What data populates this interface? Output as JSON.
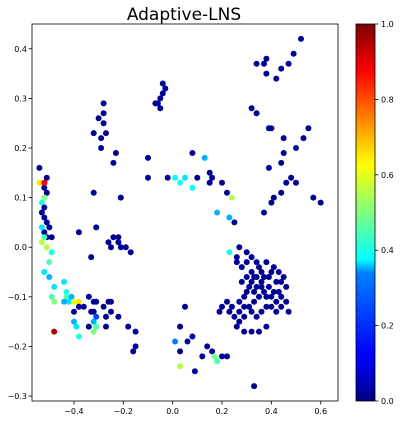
{
  "chart_data": {
    "type": "scatter",
    "title": "Adaptive-LNS",
    "xlabel": "",
    "ylabel": "",
    "xlim": [
      -0.57,
      0.67
    ],
    "ylim": [
      -0.31,
      0.45
    ],
    "x_ticks": [
      -0.4,
      -0.2,
      0.0,
      0.2,
      0.4,
      0.6
    ],
    "x_tick_labels": [
      "−0.4",
      "−0.2",
      "0.0",
      "0.2",
      "0.4",
      "0.6"
    ],
    "y_ticks": [
      -0.3,
      -0.2,
      -0.1,
      0.0,
      0.1,
      0.2,
      0.3,
      0.4
    ],
    "y_tick_labels": [
      "−0.3",
      "−0.2",
      "−0.1",
      "0.0",
      "0.1",
      "0.2",
      "0.3",
      "0.4"
    ],
    "grid": false,
    "colormap": "jet",
    "colorbar": {
      "range": [
        0.0,
        1.0
      ],
      "ticks": [
        0.0,
        0.2,
        0.4,
        0.6,
        0.8,
        1.0
      ],
      "tick_labels": [
        "0.0",
        "0.2",
        "0.4",
        "0.6",
        "0.8",
        "1.0"
      ]
    },
    "points": [
      [
        0.52,
        0.42,
        0.02
      ],
      [
        0.49,
        0.39,
        0.02
      ],
      [
        0.47,
        0.37,
        0.02
      ],
      [
        0.44,
        0.36,
        0.02
      ],
      [
        0.38,
        0.38,
        0.02
      ],
      [
        0.37,
        0.37,
        0.02
      ],
      [
        0.34,
        0.37,
        0.02
      ],
      [
        0.38,
        0.35,
        0.02
      ],
      [
        0.42,
        0.34,
        0.02
      ],
      [
        -0.04,
        0.33,
        0.02
      ],
      [
        -0.03,
        0.32,
        0.02
      ],
      [
        -0.04,
        0.31,
        0.02
      ],
      [
        -0.05,
        0.3,
        0.02
      ],
      [
        -0.06,
        0.29,
        0.02
      ],
      [
        -0.05,
        0.28,
        0.02
      ],
      [
        -0.07,
        0.29,
        0.02
      ],
      [
        -0.28,
        0.29,
        0.02
      ],
      [
        -0.28,
        0.27,
        0.02
      ],
      [
        -0.3,
        0.26,
        0.02
      ],
      [
        -0.28,
        0.25,
        0.02
      ],
      [
        -0.27,
        0.23,
        0.02
      ],
      [
        -0.29,
        0.22,
        0.02
      ],
      [
        -0.32,
        0.23,
        0.02
      ],
      [
        -0.29,
        0.2,
        0.02
      ],
      [
        -0.23,
        0.19,
        0.02
      ],
      [
        -0.24,
        0.17,
        0.02
      ],
      [
        -0.32,
        0.11,
        0.02
      ],
      [
        -0.21,
        0.1,
        0.02
      ],
      [
        0.32,
        0.28,
        0.02
      ],
      [
        0.34,
        0.27,
        0.02
      ],
      [
        0.4,
        0.24,
        0.02
      ],
      [
        0.39,
        0.24,
        0.02
      ],
      [
        0.55,
        0.24,
        0.02
      ],
      [
        0.53,
        0.22,
        0.02
      ],
      [
        0.45,
        0.22,
        0.02
      ],
      [
        0.45,
        0.19,
        0.02
      ],
      [
        0.44,
        0.17,
        0.02
      ],
      [
        0.5,
        0.2,
        0.02
      ],
      [
        0.39,
        0.16,
        0.02
      ],
      [
        0.48,
        0.14,
        0.02
      ],
      [
        0.46,
        0.13,
        0.02
      ],
      [
        0.5,
        0.13,
        0.02
      ],
      [
        0.44,
        0.11,
        0.02
      ],
      [
        0.41,
        0.1,
        0.02
      ],
      [
        0.4,
        0.09,
        0.02
      ],
      [
        0.57,
        0.1,
        0.02
      ],
      [
        0.6,
        0.09,
        0.02
      ],
      [
        0.37,
        0.07,
        0.02
      ],
      [
        -0.54,
        0.16,
        0.02
      ],
      [
        -0.51,
        0.14,
        0.02
      ],
      [
        -0.52,
        0.13,
        0.02
      ],
      [
        -0.52,
        0.12,
        0.02
      ],
      [
        -0.54,
        0.13,
        0.65
      ],
      [
        -0.52,
        0.13,
        0.88
      ],
      [
        -0.51,
        0.11,
        0.02
      ],
      [
        -0.52,
        0.1,
        0.5
      ],
      [
        -0.53,
        0.09,
        0.4
      ],
      [
        -0.52,
        0.08,
        0.02
      ],
      [
        -0.53,
        0.07,
        0.02
      ],
      [
        -0.52,
        0.06,
        0.02
      ],
      [
        -0.51,
        0.05,
        0.02
      ],
      [
        -0.5,
        0.04,
        0.02
      ],
      [
        -0.52,
        0.03,
        0.02
      ],
      [
        -0.51,
        0.02,
        0.02
      ],
      [
        -0.49,
        0.02,
        0.02
      ],
      [
        -0.53,
        0.04,
        0.35
      ],
      [
        -0.52,
        0.02,
        0.45
      ],
      [
        -0.51,
        0.0,
        0.55
      ],
      [
        -0.49,
        -0.01,
        0.4
      ],
      [
        -0.53,
        0.01,
        0.55
      ],
      [
        -0.5,
        -0.03,
        0.45
      ],
      [
        -0.52,
        -0.05,
        0.35
      ],
      [
        -0.5,
        -0.06,
        0.3
      ],
      [
        -0.48,
        -0.08,
        0.35
      ],
      [
        -0.49,
        -0.1,
        0.45
      ],
      [
        -0.48,
        -0.11,
        0.5
      ],
      [
        -0.44,
        -0.07,
        0.35
      ],
      [
        -0.43,
        -0.09,
        0.4
      ],
      [
        -0.43,
        -0.1,
        0.45
      ],
      [
        -0.42,
        -0.11,
        0.35
      ],
      [
        -0.41,
        -0.1,
        0.3
      ],
      [
        -0.4,
        -0.11,
        0.6
      ],
      [
        -0.38,
        -0.11,
        0.65
      ],
      [
        -0.44,
        -0.11,
        0.3
      ],
      [
        -0.4,
        -0.13,
        0.02
      ],
      [
        -0.38,
        -0.12,
        0.02
      ],
      [
        -0.4,
        -0.15,
        0.3
      ],
      [
        -0.39,
        -0.16,
        0.35
      ],
      [
        -0.38,
        -0.18,
        0.4
      ],
      [
        -0.36,
        -0.12,
        0.02
      ],
      [
        -0.34,
        -0.1,
        0.02
      ],
      [
        -0.32,
        -0.11,
        0.02
      ],
      [
        -0.31,
        -0.11,
        0.02
      ],
      [
        -0.33,
        -0.13,
        0.02
      ],
      [
        -0.32,
        -0.13,
        0.02
      ],
      [
        -0.34,
        -0.16,
        0.02
      ],
      [
        -0.32,
        -0.15,
        0.3
      ],
      [
        -0.31,
        -0.16,
        0.45
      ],
      [
        -0.32,
        -0.17,
        0.5
      ],
      [
        -0.31,
        -0.14,
        0.2
      ],
      [
        -0.28,
        -0.12,
        0.02
      ],
      [
        -0.26,
        -0.11,
        0.02
      ],
      [
        -0.25,
        -0.11,
        0.02
      ],
      [
        -0.27,
        -0.14,
        0.02
      ],
      [
        -0.25,
        -0.13,
        0.02
      ],
      [
        -0.27,
        -0.16,
        0.02
      ],
      [
        -0.22,
        -0.14,
        0.02
      ],
      [
        -0.18,
        -0.16,
        0.02
      ],
      [
        -0.15,
        -0.17,
        0.02
      ],
      [
        -0.15,
        -0.2,
        0.02
      ],
      [
        -0.16,
        -0.21,
        0.02
      ],
      [
        -0.48,
        -0.17,
        0.95
      ],
      [
        -0.38,
        0.03,
        0.02
      ],
      [
        -0.31,
        0.04,
        0.02
      ],
      [
        -0.26,
        0.01,
        0.02
      ],
      [
        -0.24,
        0.02,
        0.02
      ],
      [
        -0.22,
        0.01,
        0.02
      ],
      [
        -0.22,
        0.02,
        0.02
      ],
      [
        -0.21,
        0.0,
        0.02
      ],
      [
        -0.19,
        0.0,
        0.02
      ],
      [
        -0.17,
        -0.01,
        0.02
      ],
      [
        -0.25,
        0.0,
        0.02
      ],
      [
        -0.33,
        -0.02,
        0.02
      ],
      [
        -0.1,
        0.18,
        0.02
      ],
      [
        -0.1,
        0.14,
        0.02
      ],
      [
        0.08,
        0.19,
        0.02
      ],
      [
        0.1,
        0.14,
        0.02
      ],
      [
        0.15,
        0.15,
        0.02
      ],
      [
        0.16,
        0.14,
        0.02
      ],
      [
        0.15,
        0.13,
        0.02
      ],
      [
        0.2,
        0.13,
        0.02
      ],
      [
        0.22,
        0.11,
        0.02
      ],
      [
        0.05,
        0.14,
        0.35
      ],
      [
        0.13,
        0.18,
        0.3
      ],
      [
        0.18,
        0.07,
        0.3
      ],
      [
        0.23,
        0.06,
        0.3
      ],
      [
        0.24,
        0.1,
        0.55
      ],
      [
        0.03,
        0.13,
        0.4
      ],
      [
        0.08,
        0.12,
        0.38
      ],
      [
        0.01,
        0.14,
        0.38
      ],
      [
        0.27,
        0.0,
        0.02
      ],
      [
        0.3,
        -0.01,
        0.02
      ],
      [
        0.32,
        -0.02,
        0.02
      ],
      [
        0.34,
        -0.03,
        0.02
      ],
      [
        0.35,
        -0.04,
        0.02
      ],
      [
        0.36,
        -0.05,
        0.02
      ],
      [
        0.38,
        -0.03,
        0.02
      ],
      [
        0.41,
        -0.04,
        0.02
      ],
      [
        0.43,
        -0.05,
        0.02
      ],
      [
        0.45,
        -0.06,
        0.02
      ],
      [
        0.46,
        -0.08,
        0.02
      ],
      [
        0.3,
        -0.06,
        0.02
      ],
      [
        0.28,
        -0.07,
        0.02
      ],
      [
        0.32,
        -0.07,
        0.02
      ],
      [
        0.34,
        -0.08,
        0.02
      ],
      [
        0.36,
        -0.08,
        0.02
      ],
      [
        0.37,
        -0.09,
        0.02
      ],
      [
        0.39,
        -0.08,
        0.02
      ],
      [
        0.41,
        -0.09,
        0.02
      ],
      [
        0.43,
        -0.09,
        0.02
      ],
      [
        0.44,
        -0.1,
        0.02
      ],
      [
        0.46,
        -0.11,
        0.02
      ],
      [
        0.35,
        -0.1,
        0.02
      ],
      [
        0.33,
        -0.11,
        0.02
      ],
      [
        0.31,
        -0.12,
        0.02
      ],
      [
        0.29,
        -0.1,
        0.02
      ],
      [
        0.27,
        -0.11,
        0.02
      ],
      [
        0.24,
        -0.12,
        0.02
      ],
      [
        0.22,
        -0.11,
        0.02
      ],
      [
        0.2,
        -0.12,
        0.02
      ],
      [
        0.19,
        -0.13,
        0.02
      ],
      [
        0.23,
        -0.13,
        0.02
      ],
      [
        0.25,
        -0.14,
        0.02
      ],
      [
        0.27,
        -0.15,
        0.02
      ],
      [
        0.29,
        -0.14,
        0.02
      ],
      [
        0.32,
        -0.13,
        0.02
      ],
      [
        0.34,
        -0.14,
        0.02
      ],
      [
        0.36,
        -0.13,
        0.02
      ],
      [
        0.38,
        -0.12,
        0.02
      ],
      [
        0.4,
        -0.12,
        0.02
      ],
      [
        0.42,
        -0.13,
        0.02
      ],
      [
        0.44,
        -0.12,
        0.02
      ],
      [
        0.47,
        -0.13,
        0.02
      ],
      [
        0.38,
        -0.16,
        0.02
      ],
      [
        0.35,
        -0.17,
        0.02
      ],
      [
        0.32,
        -0.17,
        0.02
      ],
      [
        0.29,
        -0.17,
        0.02
      ],
      [
        0.26,
        -0.16,
        0.02
      ],
      [
        0.33,
        -0.06,
        0.02
      ],
      [
        0.37,
        -0.06,
        0.02
      ],
      [
        0.39,
        -0.06,
        0.02
      ],
      [
        0.4,
        -0.05,
        0.02
      ],
      [
        0.3,
        -0.09,
        0.02
      ],
      [
        0.42,
        -0.07,
        0.02
      ],
      [
        0.44,
        -0.07,
        0.02
      ],
      [
        0.26,
        -0.03,
        0.02
      ],
      [
        0.28,
        -0.04,
        0.02
      ],
      [
        0.3,
        -0.03,
        0.02
      ],
      [
        0.32,
        -0.05,
        0.02
      ],
      [
        0.34,
        -0.06,
        0.02
      ],
      [
        0.36,
        -0.07,
        0.02
      ],
      [
        0.38,
        -0.1,
        0.02
      ],
      [
        0.4,
        -0.1,
        0.02
      ],
      [
        0.42,
        -0.11,
        0.02
      ],
      [
        0.31,
        -0.08,
        0.02
      ],
      [
        0.33,
        -0.09,
        0.02
      ],
      [
        0.29,
        -0.12,
        0.02
      ],
      [
        0.27,
        -0.13,
        0.02
      ],
      [
        0.33,
        -0.28,
        0.02
      ],
      [
        0.03,
        -0.16,
        0.02
      ],
      [
        0.08,
        -0.18,
        0.02
      ],
      [
        0.06,
        -0.19,
        0.02
      ],
      [
        0.14,
        -0.2,
        0.02
      ],
      [
        0.16,
        -0.21,
        0.02
      ],
      [
        0.09,
        -0.25,
        0.02
      ],
      [
        0.03,
        -0.21,
        0.02
      ],
      [
        0.01,
        -0.19,
        0.25
      ],
      [
        0.17,
        -0.22,
        0.5
      ],
      [
        0.18,
        -0.23,
        0.45
      ],
      [
        0.22,
        -0.22,
        0.02
      ],
      [
        0.03,
        -0.24,
        0.55
      ],
      [
        0.23,
        -0.01,
        0.4
      ],
      [
        0.25,
        0.05,
        0.02
      ],
      [
        0.26,
        -0.02,
        0.02
      ],
      [
        -0.02,
        0.14,
        0.02
      ],
      [
        0.12,
        -0.22,
        0.02
      ],
      [
        0.2,
        -0.22,
        0.02
      ],
      [
        0.05,
        -0.12,
        0.02
      ]
    ]
  }
}
